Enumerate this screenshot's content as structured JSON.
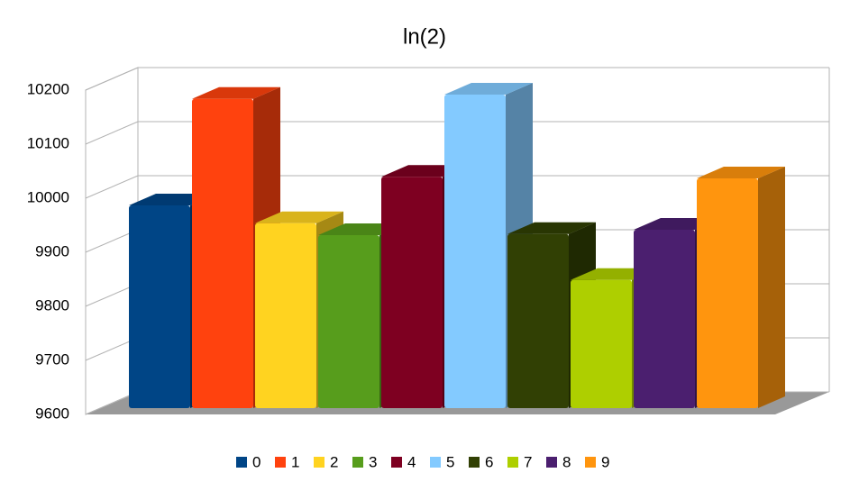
{
  "chart_data": {
    "type": "bar3d",
    "title": "ln(2)",
    "categories": [
      null
    ],
    "series": [
      {
        "name": "0",
        "color": "#004586",
        "values": [
          9975
        ]
      },
      {
        "name": "1",
        "color": "#ff420e",
        "values": [
          10172
        ]
      },
      {
        "name": "2",
        "color": "#ffd320",
        "values": [
          9942
        ]
      },
      {
        "name": "3",
        "color": "#579d1c",
        "values": [
          9920
        ]
      },
      {
        "name": "4",
        "color": "#7e0021",
        "values": [
          10028
        ]
      },
      {
        "name": "5",
        "color": "#83caff",
        "values": [
          10180
        ]
      },
      {
        "name": "6",
        "color": "#314004",
        "values": [
          9922
        ]
      },
      {
        "name": "7",
        "color": "#aecf00",
        "values": [
          9837
        ]
      },
      {
        "name": "8",
        "color": "#4b1f6f",
        "values": [
          9930
        ]
      },
      {
        "name": "9",
        "color": "#ff950e",
        "values": [
          10025
        ]
      }
    ],
    "ylim": [
      9600,
      10200
    ],
    "yticks": [
      9600,
      9700,
      9800,
      9900,
      10000,
      10100,
      10200
    ],
    "grid": true,
    "legend": "bottom"
  }
}
